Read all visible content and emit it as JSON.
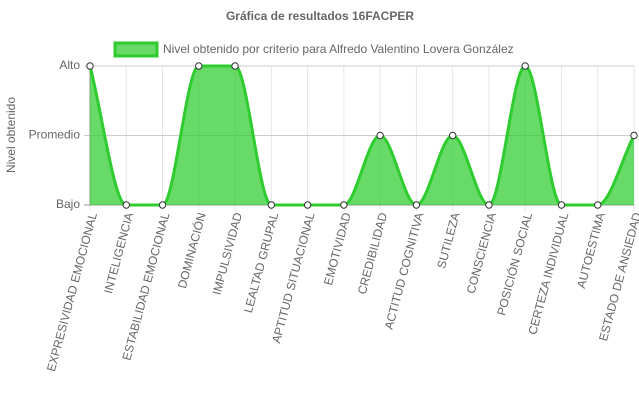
{
  "chart_data": {
    "type": "line",
    "title": "Gráfica de resultados 16FACPER",
    "y_label": "Nivel obtenido",
    "categories": [
      "EXPRESIVIDAD EMOCIONAL",
      "INTELIGENCIA",
      "ESTABILIDAD EMOCIONAL",
      "DOMINACIÓN",
      "IMPULSIVIDAD",
      "LEALTAD GRUPAL",
      "APTITUD SITUACIONAL",
      "EMOTIVIDAD",
      "CREDIBILIDAD",
      "ACTITUD COGNITIVA",
      "SUTILEZA",
      "CONSCIENCIA",
      "POSICIÓN SOCIAL",
      "CERTEZA INDIVIDUAL",
      "AUTOESTIMA",
      "ESTADO DE ANSIEDAD"
    ],
    "series": [
      {
        "name": "Nivel obtenido por criterio para Alfredo Valentino Lovera González",
        "color": "#2ecc2e",
        "fill": "rgba(46,204,46,0.72)",
        "values": [
          3,
          1,
          1,
          3,
          3,
          1,
          1,
          1,
          2,
          1,
          2,
          1,
          3,
          1,
          1,
          2
        ]
      }
    ],
    "ylim": [
      1,
      3
    ],
    "yticks": [
      {
        "value": 1,
        "label": "Bajo"
      },
      {
        "value": 2,
        "label": "Promedio"
      },
      {
        "value": 3,
        "label": "Alto"
      }
    ],
    "grid": true,
    "legend": "top"
  }
}
